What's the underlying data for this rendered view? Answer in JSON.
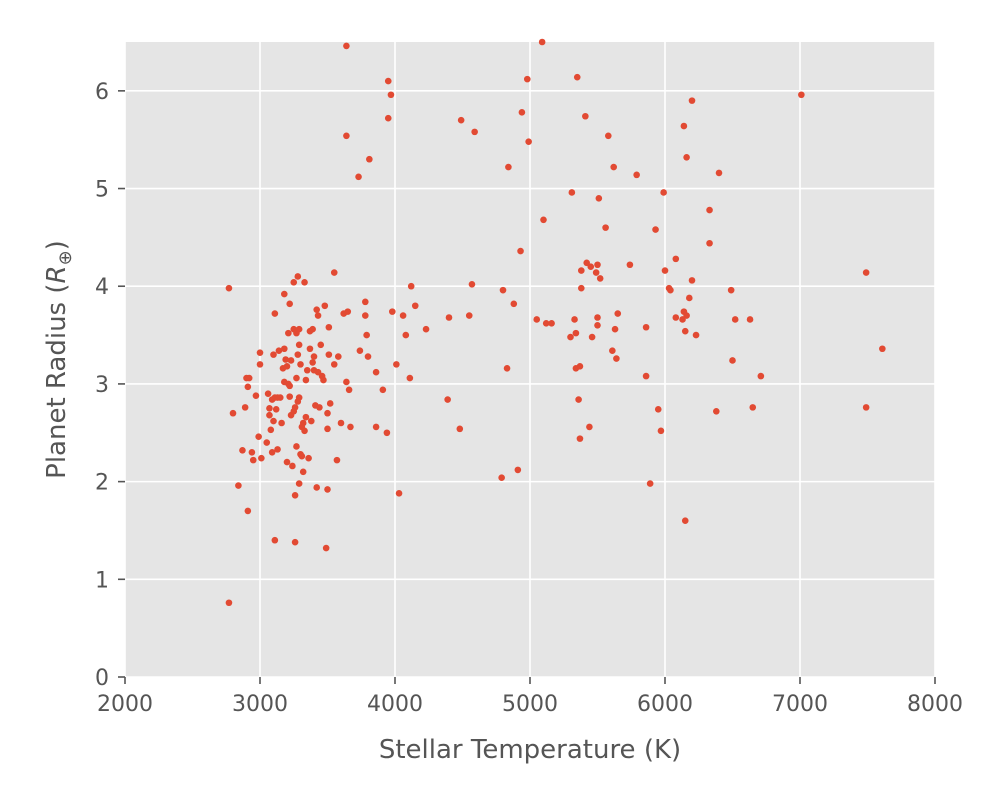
{
  "chart_data": {
    "type": "scatter",
    "title": "",
    "xlabel": "Stellar Temperature (K)",
    "ylabel_prefix": "Planet Radius (",
    "ylabel_var": "R",
    "ylabel_sub": "⊕",
    "ylabel_suffix": ")",
    "xlim": [
      2000,
      8000
    ],
    "ylim": [
      0,
      6.5
    ],
    "xticks": [
      2000,
      3000,
      4000,
      5000,
      6000,
      7000,
      8000
    ],
    "yticks": [
      0,
      1,
      2,
      3,
      4,
      5,
      6
    ],
    "grid": true,
    "style": "ggplot",
    "colors": {
      "marker": "#E24A33",
      "background": "#E5E5E5",
      "grid": "#FFFFFF",
      "text": "#555555"
    },
    "points": [
      [
        2770,
        0.76
      ],
      [
        2770,
        3.98
      ],
      [
        2800,
        2.7
      ],
      [
        2840,
        1.96
      ],
      [
        2870,
        2.32
      ],
      [
        2890,
        2.76
      ],
      [
        2900,
        3.06
      ],
      [
        2910,
        2.97
      ],
      [
        2910,
        1.7
      ],
      [
        2920,
        3.06
      ],
      [
        2940,
        2.3
      ],
      [
        2950,
        2.22
      ],
      [
        2970,
        2.88
      ],
      [
        2990,
        2.46
      ],
      [
        3000,
        3.32
      ],
      [
        3000,
        3.2
      ],
      [
        3010,
        2.24
      ],
      [
        3050,
        2.4
      ],
      [
        3060,
        2.9
      ],
      [
        3070,
        2.68
      ],
      [
        3070,
        2.75
      ],
      [
        3080,
        2.53
      ],
      [
        3090,
        2.3
      ],
      [
        3090,
        2.84
      ],
      [
        3100,
        3.3
      ],
      [
        3100,
        2.62
      ],
      [
        3110,
        2.86
      ],
      [
        3110,
        3.72
      ],
      [
        3110,
        1.4
      ],
      [
        3120,
        2.74
      ],
      [
        3130,
        2.86
      ],
      [
        3130,
        2.33
      ],
      [
        3140,
        3.34
      ],
      [
        3150,
        2.86
      ],
      [
        3160,
        2.6
      ],
      [
        3170,
        3.16
      ],
      [
        3180,
        3.36
      ],
      [
        3180,
        3.02
      ],
      [
        3180,
        3.92
      ],
      [
        3190,
        3.25
      ],
      [
        3200,
        3.18
      ],
      [
        3200,
        2.2
      ],
      [
        3210,
        3.52
      ],
      [
        3210,
        3.0
      ],
      [
        3220,
        2.98
      ],
      [
        3220,
        2.87
      ],
      [
        3220,
        3.82
      ],
      [
        3230,
        3.24
      ],
      [
        3230,
        2.68
      ],
      [
        3240,
        2.16
      ],
      [
        3250,
        4.04
      ],
      [
        3250,
        3.56
      ],
      [
        3250,
        2.72
      ],
      [
        3260,
        1.38
      ],
      [
        3260,
        1.86
      ],
      [
        3260,
        2.76
      ],
      [
        3270,
        3.52
      ],
      [
        3270,
        2.36
      ],
      [
        3270,
        3.06
      ],
      [
        3280,
        3.3
      ],
      [
        3280,
        4.1
      ],
      [
        3280,
        2.82
      ],
      [
        3290,
        3.56
      ],
      [
        3290,
        3.4
      ],
      [
        3290,
        2.86
      ],
      [
        3290,
        1.98
      ],
      [
        3300,
        3.2
      ],
      [
        3300,
        2.28
      ],
      [
        3310,
        2.26
      ],
      [
        3310,
        2.56
      ],
      [
        3320,
        2.6
      ],
      [
        3320,
        2.1
      ],
      [
        3330,
        4.04
      ],
      [
        3330,
        2.52
      ],
      [
        3340,
        2.66
      ],
      [
        3340,
        3.04
      ],
      [
        3350,
        3.14
      ],
      [
        3360,
        2.24
      ],
      [
        3370,
        3.36
      ],
      [
        3370,
        3.54
      ],
      [
        3380,
        2.62
      ],
      [
        3390,
        3.56
      ],
      [
        3390,
        3.22
      ],
      [
        3400,
        3.28
      ],
      [
        3400,
        3.14
      ],
      [
        3410,
        2.78
      ],
      [
        3420,
        1.94
      ],
      [
        3420,
        3.76
      ],
      [
        3430,
        3.7
      ],
      [
        3430,
        3.12
      ],
      [
        3440,
        2.76
      ],
      [
        3450,
        3.4
      ],
      [
        3460,
        3.08
      ],
      [
        3470,
        3.04
      ],
      [
        3480,
        3.8
      ],
      [
        3490,
        1.32
      ],
      [
        3500,
        2.54
      ],
      [
        3500,
        2.7
      ],
      [
        3500,
        1.92
      ],
      [
        3510,
        3.3
      ],
      [
        3510,
        3.58
      ],
      [
        3520,
        2.8
      ],
      [
        3550,
        3.2
      ],
      [
        3550,
        4.14
      ],
      [
        3570,
        2.22
      ],
      [
        3580,
        3.28
      ],
      [
        3600,
        2.6
      ],
      [
        3620,
        3.72
      ],
      [
        3640,
        6.46
      ],
      [
        3640,
        5.54
      ],
      [
        3640,
        3.02
      ],
      [
        3650,
        3.74
      ],
      [
        3660,
        2.94
      ],
      [
        3670,
        2.56
      ],
      [
        3730,
        5.12
      ],
      [
        3740,
        3.34
      ],
      [
        3780,
        3.84
      ],
      [
        3780,
        3.7
      ],
      [
        3790,
        3.5
      ],
      [
        3800,
        3.28
      ],
      [
        3810,
        5.3
      ],
      [
        3860,
        2.56
      ],
      [
        3860,
        3.12
      ],
      [
        3910,
        2.94
      ],
      [
        3940,
        2.5
      ],
      [
        3950,
        6.1
      ],
      [
        3950,
        5.72
      ],
      [
        3970,
        5.96
      ],
      [
        3980,
        3.74
      ],
      [
        4010,
        3.2
      ],
      [
        4030,
        1.88
      ],
      [
        4060,
        3.7
      ],
      [
        4080,
        3.5
      ],
      [
        4110,
        3.06
      ],
      [
        4120,
        4.0
      ],
      [
        4150,
        3.8
      ],
      [
        4230,
        3.56
      ],
      [
        4390,
        2.84
      ],
      [
        4400,
        3.68
      ],
      [
        4480,
        2.54
      ],
      [
        4490,
        5.7
      ],
      [
        4550,
        3.7
      ],
      [
        4570,
        4.02
      ],
      [
        4590,
        5.58
      ],
      [
        4790,
        2.04
      ],
      [
        4800,
        3.96
      ],
      [
        4830,
        3.16
      ],
      [
        4840,
        5.22
      ],
      [
        4880,
        3.82
      ],
      [
        4910,
        2.12
      ],
      [
        4930,
        4.36
      ],
      [
        4940,
        5.78
      ],
      [
        4980,
        6.12
      ],
      [
        4990,
        5.48
      ],
      [
        5050,
        3.66
      ],
      [
        5090,
        6.5
      ],
      [
        5100,
        4.68
      ],
      [
        5120,
        3.62
      ],
      [
        5160,
        3.62
      ],
      [
        5300,
        3.48
      ],
      [
        5310,
        4.96
      ],
      [
        5330,
        3.66
      ],
      [
        5340,
        3.16
      ],
      [
        5340,
        3.52
      ],
      [
        5350,
        6.14
      ],
      [
        5360,
        2.84
      ],
      [
        5370,
        3.18
      ],
      [
        5370,
        2.44
      ],
      [
        5380,
        3.98
      ],
      [
        5380,
        4.16
      ],
      [
        5410,
        5.74
      ],
      [
        5420,
        4.24
      ],
      [
        5440,
        2.56
      ],
      [
        5450,
        4.2
      ],
      [
        5460,
        3.48
      ],
      [
        5490,
        4.14
      ],
      [
        5500,
        3.68
      ],
      [
        5500,
        4.22
      ],
      [
        5500,
        3.6
      ],
      [
        5510,
        4.9
      ],
      [
        5520,
        4.08
      ],
      [
        5560,
        4.6
      ],
      [
        5580,
        5.54
      ],
      [
        5610,
        3.34
      ],
      [
        5620,
        5.22
      ],
      [
        5630,
        3.56
      ],
      [
        5640,
        3.26
      ],
      [
        5650,
        3.72
      ],
      [
        5740,
        4.22
      ],
      [
        5790,
        5.14
      ],
      [
        5860,
        3.58
      ],
      [
        5860,
        3.08
      ],
      [
        5890,
        1.98
      ],
      [
        5930,
        4.58
      ],
      [
        5950,
        2.74
      ],
      [
        5970,
        2.52
      ],
      [
        5990,
        4.96
      ],
      [
        6000,
        4.16
      ],
      [
        6030,
        3.98
      ],
      [
        6040,
        3.96
      ],
      [
        6080,
        4.28
      ],
      [
        6080,
        3.68
      ],
      [
        6130,
        3.66
      ],
      [
        6140,
        3.74
      ],
      [
        6140,
        5.64
      ],
      [
        6150,
        1.6
      ],
      [
        6150,
        3.54
      ],
      [
        6160,
        3.7
      ],
      [
        6160,
        5.32
      ],
      [
        6180,
        3.88
      ],
      [
        6200,
        5.9
      ],
      [
        6200,
        4.06
      ],
      [
        6230,
        3.5
      ],
      [
        6330,
        4.78
      ],
      [
        6330,
        4.44
      ],
      [
        6380,
        2.72
      ],
      [
        6400,
        5.16
      ],
      [
        6490,
        3.96
      ],
      [
        6500,
        3.24
      ],
      [
        6520,
        3.66
      ],
      [
        6630,
        3.66
      ],
      [
        6650,
        2.76
      ],
      [
        6710,
        3.08
      ],
      [
        7010,
        5.96
      ],
      [
        7490,
        4.14
      ],
      [
        7490,
        2.76
      ],
      [
        7610,
        3.36
      ]
    ]
  }
}
